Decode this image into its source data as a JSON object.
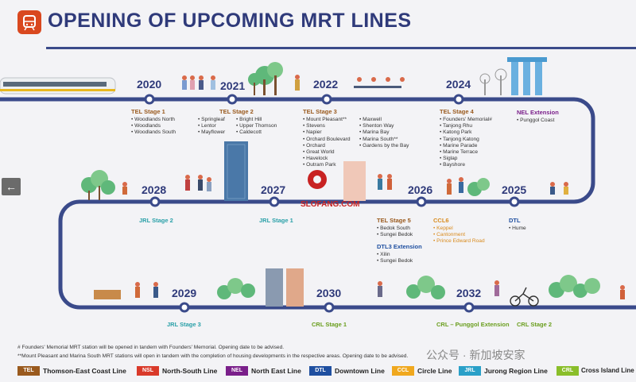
{
  "header": {
    "title": "OPENING OF UPCOMING MRT LINES"
  },
  "years": {
    "y2020": "2020",
    "y2021": "2021",
    "y2022": "2022",
    "y2024": "2024",
    "y2025": "2025",
    "y2026": "2026",
    "y2027": "2027",
    "y2028": "2028",
    "y2029": "2029",
    "y2030": "2030",
    "y2032": "2032"
  },
  "stages": {
    "tel1": {
      "title": "TEL Stage 1",
      "list": "• Woodlands North\n• Woodlands\n• Woodlands South"
    },
    "tel2": {
      "title": "TEL Stage 2",
      "list_a": "• Springleaf\n• Lentor\n• Mayflower",
      "list_b": "• Bright Hill\n• Upper Thomson\n• Caldecott"
    },
    "tel3": {
      "title": "TEL Stage 3",
      "list_a": "• Mount Pleasant**\n• Stevens\n• Napier\n• Orchard Boulevard\n• Orchard\n• Great World\n• Havelock\n• Outram Park",
      "list_b": "• Maxwell\n• Shenton Way\n• Marina Bay\n• Marina South**\n• Gardens by the Bay"
    },
    "tel4": {
      "title": "TEL Stage 4",
      "list": "• Founders' Memorial#\n• Tanjong Rhu\n• Katong Park\n• Tanjong Katong\n• Marine Parade\n• Marine Terrace\n• Siglap\n• Bayshore"
    },
    "nel": {
      "title": "NEL Extension",
      "list": "• Punggol Coast"
    },
    "jrl2": {
      "title": "JRL Stage 2"
    },
    "jrl1": {
      "title": "JRL Stage 1"
    },
    "tel5": {
      "title": "TEL Stage 5",
      "list": "• Bedok South\n• Sungei Bedok"
    },
    "dtl3": {
      "title": "DTL3 Extension",
      "list": "• Xilin\n• Sungei Bedok"
    },
    "ccl6": {
      "title": "CCL6",
      "list": "• Keppel\n• Cantonment\n• Prince Edward Road"
    },
    "dtl": {
      "title": "DTL",
      "list": "• Hume"
    },
    "jrl3": {
      "title": "JRL Stage 3"
    },
    "crl1": {
      "title": "CRL Stage 1"
    },
    "crlp": {
      "title": "CRL – Punggol Extension"
    },
    "crl2": {
      "title": "CRL Stage 2"
    }
  },
  "notes": {
    "n1": "# Founders' Memorial MRT station will be opened in tandem with Founders' Memorial. Opening date to be advised.",
    "n2": "**Mount Pleasant and Marina South MRT stations will open in tandem with the completion of housing developments in the respective areas. Opening date to be advised."
  },
  "legend": [
    {
      "code": "TEL",
      "name": "Thomson-East Coast Line",
      "color": "#9a5a1e"
    },
    {
      "code": "NSL",
      "name": "North-South Line",
      "color": "#d93a2a"
    },
    {
      "code": "NEL",
      "name": "North East Line",
      "color": "#7a1f8a"
    },
    {
      "code": "DTL",
      "name": "Downtown Line",
      "color": "#1f4fa0"
    },
    {
      "code": "CCL",
      "name": "Circle Line",
      "color": "#f0a81e"
    },
    {
      "code": "JRL",
      "name": "Jurong Region Line",
      "color": "#2aa0c8"
    },
    {
      "code": "CRL",
      "name": "Cross Island Line",
      "color": "#8abe2a"
    }
  ],
  "watermark": "公众号 · 新加坡安家",
  "center_watermark": "SLOFANG.COM",
  "nav": {
    "back": "←"
  },
  "colors": {
    "track": "#3a4a8a",
    "accent": "#d9481f"
  }
}
